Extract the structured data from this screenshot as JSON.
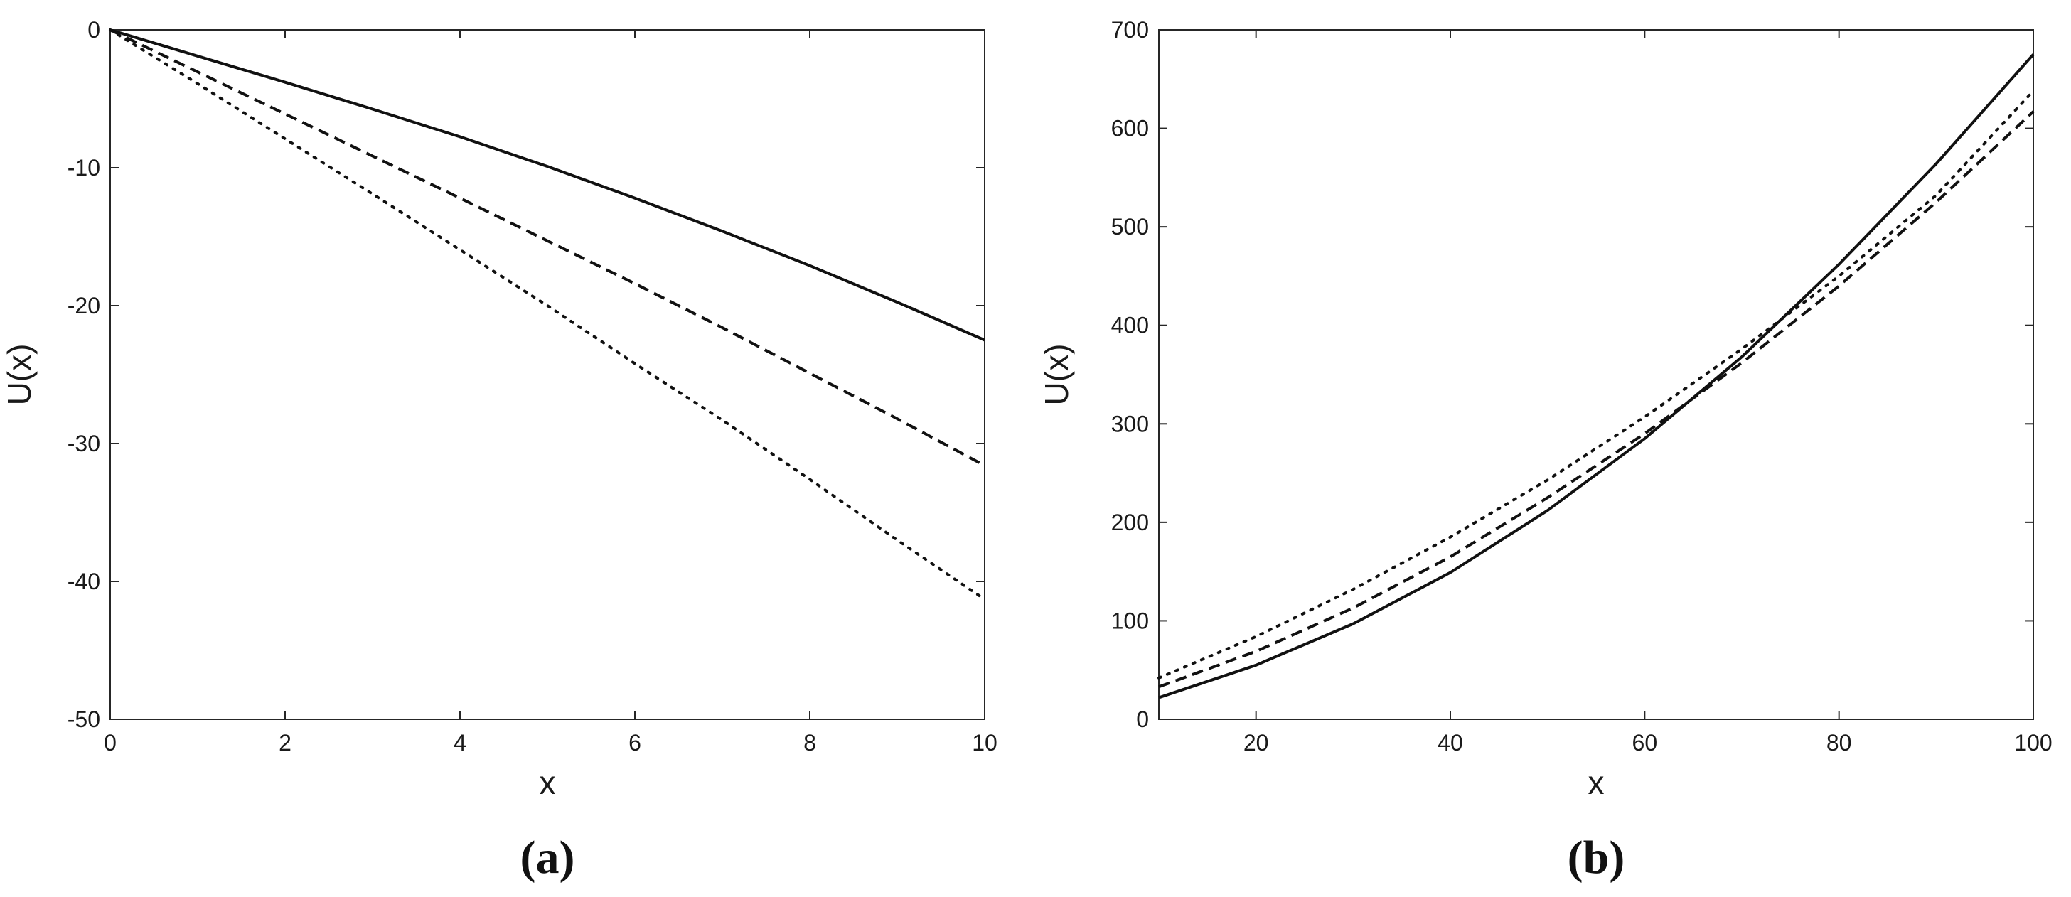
{
  "chart_data": [
    {
      "type": "line",
      "panel_label": "(a)",
      "xlabel": "x",
      "ylabel": "U(x)",
      "xlim": [
        0,
        10
      ],
      "ylim": [
        -50,
        0
      ],
      "xticks": [
        0,
        2,
        4,
        6,
        8,
        10
      ],
      "yticks": [
        0,
        -10,
        -20,
        -30,
        -40,
        -50
      ],
      "grid": false,
      "x": [
        0,
        1,
        2,
        3,
        4,
        5,
        6,
        7,
        8,
        9,
        10
      ],
      "series": [
        {
          "style": "solid",
          "values": [
            0,
            -1.9,
            -3.8,
            -5.75,
            -7.75,
            -9.9,
            -12.2,
            -14.6,
            -17.1,
            -19.75,
            -22.5
          ]
        },
        {
          "style": "dashed",
          "values": [
            0,
            -3.05,
            -6.1,
            -9.15,
            -12.2,
            -15.3,
            -18.4,
            -21.6,
            -24.9,
            -28.2,
            -31.6
          ]
        },
        {
          "style": "dotted",
          "values": [
            0,
            -3.9,
            -7.9,
            -11.9,
            -15.95,
            -20.0,
            -24.2,
            -28.3,
            -32.6,
            -37.0,
            -41.3
          ]
        }
      ]
    },
    {
      "type": "line",
      "panel_label": "(b)",
      "xlabel": "x",
      "ylabel": "U(x)",
      "xlim": [
        10,
        100
      ],
      "ylim": [
        0,
        700
      ],
      "xticks": [
        20,
        40,
        60,
        80,
        100
      ],
      "yticks": [
        0,
        100,
        200,
        300,
        400,
        500,
        600,
        700
      ],
      "grid": false,
      "x": [
        10,
        20,
        30,
        40,
        50,
        60,
        70,
        80,
        90,
        100
      ],
      "series": [
        {
          "style": "solid",
          "values": [
            22,
            55,
            97,
            149,
            212,
            285,
            368,
            462,
            564,
            675
          ]
        },
        {
          "style": "dashed",
          "values": [
            33,
            69,
            113,
            165,
            225,
            290,
            362,
            440,
            525,
            617
          ]
        },
        {
          "style": "dotted",
          "values": [
            42,
            84,
            132,
            185,
            243,
            307,
            376,
            450,
            532,
            638
          ]
        }
      ]
    }
  ]
}
